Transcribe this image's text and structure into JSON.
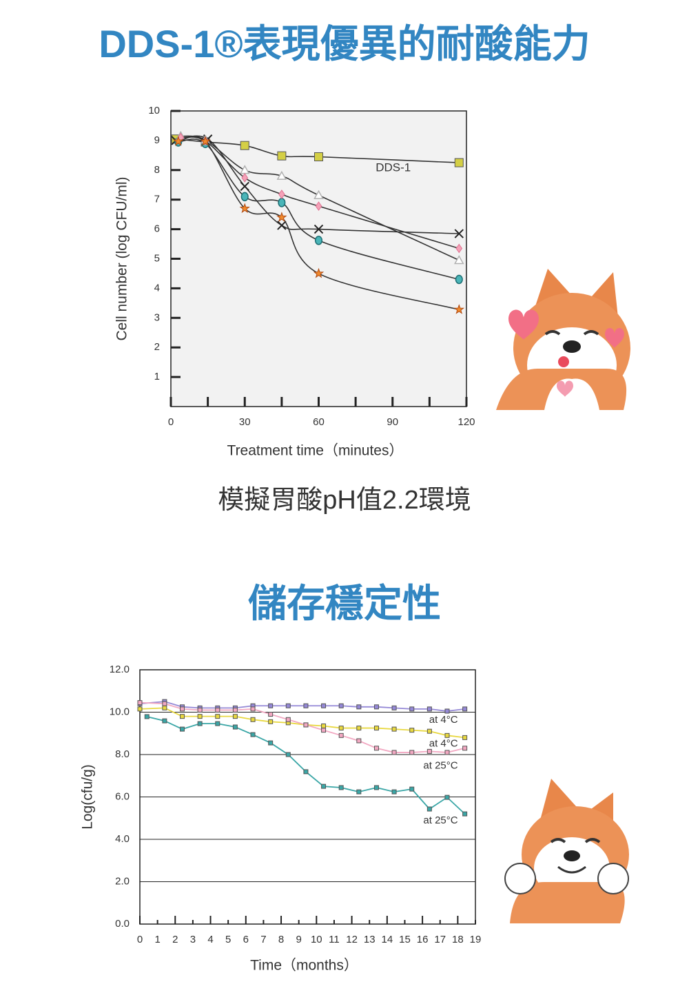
{
  "chart_data": [
    {
      "type": "line",
      "title": "DDS-1®表現優異的耐酸能力",
      "subtitle": "模擬胃酸pH值2.2環境",
      "x_label": "Treatment time（minutes）",
      "y_label": "Cell number (log CFU/ml)",
      "xlim": [
        0,
        120
      ],
      "ylim": [
        0,
        10
      ],
      "xticks": [
        0,
        30,
        60,
        90,
        120
      ],
      "xminor": [
        15,
        45,
        75,
        105
      ],
      "yticks": [
        1,
        2,
        3,
        4,
        5,
        6,
        7,
        8,
        9,
        10
      ],
      "smooth": true,
      "line_color": "#333333",
      "background": "#f2f2f2",
      "series": [
        {
          "name": "DDS-1",
          "marker": "square",
          "color": "#d4cf45",
          "x": [
            2,
            14,
            30,
            45,
            60,
            117
          ],
          "values": [
            9.05,
            8.95,
            8.83,
            8.48,
            8.45,
            8.25
          ]
        },
        {
          "marker": "x",
          "color": "#222222",
          "x": [
            2,
            15,
            30,
            45,
            60,
            117
          ],
          "values": [
            9.0,
            9.05,
            7.45,
            6.13,
            6.0,
            5.85
          ]
        },
        {
          "marker": "circle",
          "color": "#4ab5b8",
          "x": [
            3,
            14,
            30,
            45,
            60,
            117
          ],
          "values": [
            8.95,
            8.9,
            7.1,
            6.9,
            5.62,
            4.3
          ]
        },
        {
          "marker": "triangle",
          "color": "#b0b0b0",
          "x": [
            4,
            14,
            30,
            45,
            60,
            117
          ],
          "values": [
            9.15,
            9.02,
            8.0,
            7.8,
            7.15,
            4.95
          ]
        },
        {
          "marker": "diamond",
          "color": "#f4a2b8",
          "x": [
            4,
            14,
            30,
            45,
            60,
            117
          ],
          "values": [
            9.1,
            8.98,
            7.74,
            7.18,
            6.78,
            5.35
          ]
        },
        {
          "marker": "star",
          "color": "#f08a2e",
          "x": [
            3,
            14,
            30,
            45,
            60,
            117
          ],
          "values": [
            8.97,
            8.97,
            6.7,
            6.4,
            4.5,
            3.28
          ]
        }
      ]
    },
    {
      "type": "line",
      "title": "儲存穩定性",
      "x_label": "Time（months）",
      "y_label": "Log(cfu/g)",
      "xlim": [
        0,
        19
      ],
      "ylim": [
        0,
        12
      ],
      "xticks": [
        0,
        1,
        2,
        3,
        4,
        5,
        6,
        7,
        8,
        9,
        10,
        11,
        12,
        13,
        14,
        15,
        16,
        17,
        18,
        19
      ],
      "yticks": [
        {
          "value": 0,
          "label": "0.0"
        },
        {
          "value": 2,
          "label": "2.0"
        },
        {
          "value": 4,
          "label": "4.0"
        },
        {
          "value": 6,
          "label": "6.0"
        },
        {
          "value": 8,
          "label": "8.0"
        },
        {
          "value": 10,
          "label": "10.0"
        },
        {
          "value": 12,
          "label": "12.0"
        }
      ],
      "grid": true,
      "smooth": false,
      "background": "#ffffff",
      "series": [
        {
          "name": "at 4°C",
          "marker": "square",
          "color": "#9488d6",
          "x": [
            0,
            1.4,
            2.4,
            3.4,
            4.4,
            5.4,
            6.4,
            7.4,
            8.4,
            9.4,
            10.4,
            11.4,
            12.4,
            13.4,
            14.4,
            15.4,
            16.4,
            17.4,
            18.4
          ],
          "values": [
            10.4,
            10.5,
            10.25,
            10.2,
            10.2,
            10.2,
            10.3,
            10.3,
            10.3,
            10.3,
            10.3,
            10.3,
            10.25,
            10.25,
            10.2,
            10.15,
            10.15,
            10.05,
            10.15
          ]
        },
        {
          "name": "at 4°C",
          "marker": "square",
          "color": "#e8d840",
          "x": [
            0,
            1.4,
            2.4,
            3.4,
            4.4,
            5.4,
            6.4,
            7.4,
            8.4,
            9.4,
            10.4,
            11.4,
            12.4,
            13.4,
            14.4,
            15.4,
            16.4,
            17.4,
            18.4
          ],
          "values": [
            10.15,
            10.2,
            9.8,
            9.8,
            9.8,
            9.8,
            9.65,
            9.55,
            9.5,
            9.4,
            9.35,
            9.25,
            9.25,
            9.25,
            9.2,
            9.15,
            9.1,
            8.9,
            8.8
          ]
        },
        {
          "name": "at 25°C",
          "marker": "square",
          "color": "#f2a8c2",
          "x": [
            0,
            1.4,
            2.4,
            3.4,
            4.4,
            5.4,
            6.4,
            7.4,
            8.4,
            9.4,
            10.4,
            11.4,
            12.4,
            13.4,
            14.4,
            15.4,
            16.4,
            17.4,
            18.4
          ],
          "values": [
            10.45,
            10.4,
            10.15,
            10.1,
            10.1,
            10.1,
            10.15,
            9.9,
            9.65,
            9.4,
            9.15,
            8.9,
            8.65,
            8.3,
            8.1,
            8.1,
            8.15,
            8.1,
            8.3
          ]
        },
        {
          "name": "at 25°C",
          "marker": "square",
          "color": "#3aa6a6",
          "x": [
            0.4,
            1.4,
            2.4,
            3.4,
            4.4,
            5.4,
            6.4,
            7.4,
            8.4,
            9.4,
            10.4,
            11.4,
            12.4,
            13.4,
            14.4,
            15.4,
            16.4,
            17.4,
            18.4
          ],
          "values": [
            9.79,
            9.59,
            9.2,
            9.46,
            9.46,
            9.3,
            8.94,
            8.55,
            8.0,
            7.19,
            6.5,
            6.44,
            6.24,
            6.44,
            6.24,
            6.37,
            5.43,
            5.98,
            5.2
          ]
        }
      ]
    }
  ]
}
